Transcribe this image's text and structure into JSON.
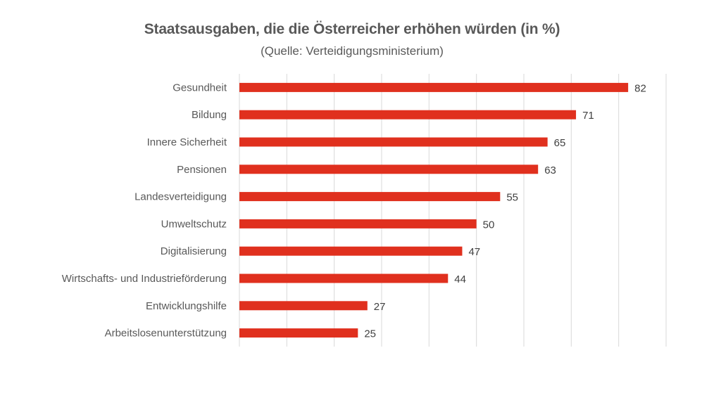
{
  "chart_data": {
    "type": "bar",
    "orientation": "horizontal",
    "title": "Staatsausgaben, die die Österreicher erhöhen würden (in %)",
    "subtitle": "(Quelle: Verteidigungsministerium)",
    "categories": [
      "Gesundheit",
      "Bildung",
      "Innere Sicherheit",
      "Pensionen",
      "Landesverteidigung",
      "Umweltschutz",
      "Digitalisierung",
      "Wirtschafts- und Industrieförderung",
      "Entwicklungshilfe",
      "Arbeitslosenunterstützung"
    ],
    "values": [
      82,
      71,
      65,
      63,
      55,
      50,
      47,
      44,
      27,
      25
    ],
    "xlabel": "",
    "ylabel": "",
    "xlim": [
      0,
      90
    ],
    "x_gridline_step": 10,
    "x_tick_labels_visible": false,
    "data_labels": true,
    "grid": "vertical",
    "legend": "none",
    "bar_color": "#E0301E",
    "gridline_color": "#D9D9D9"
  }
}
